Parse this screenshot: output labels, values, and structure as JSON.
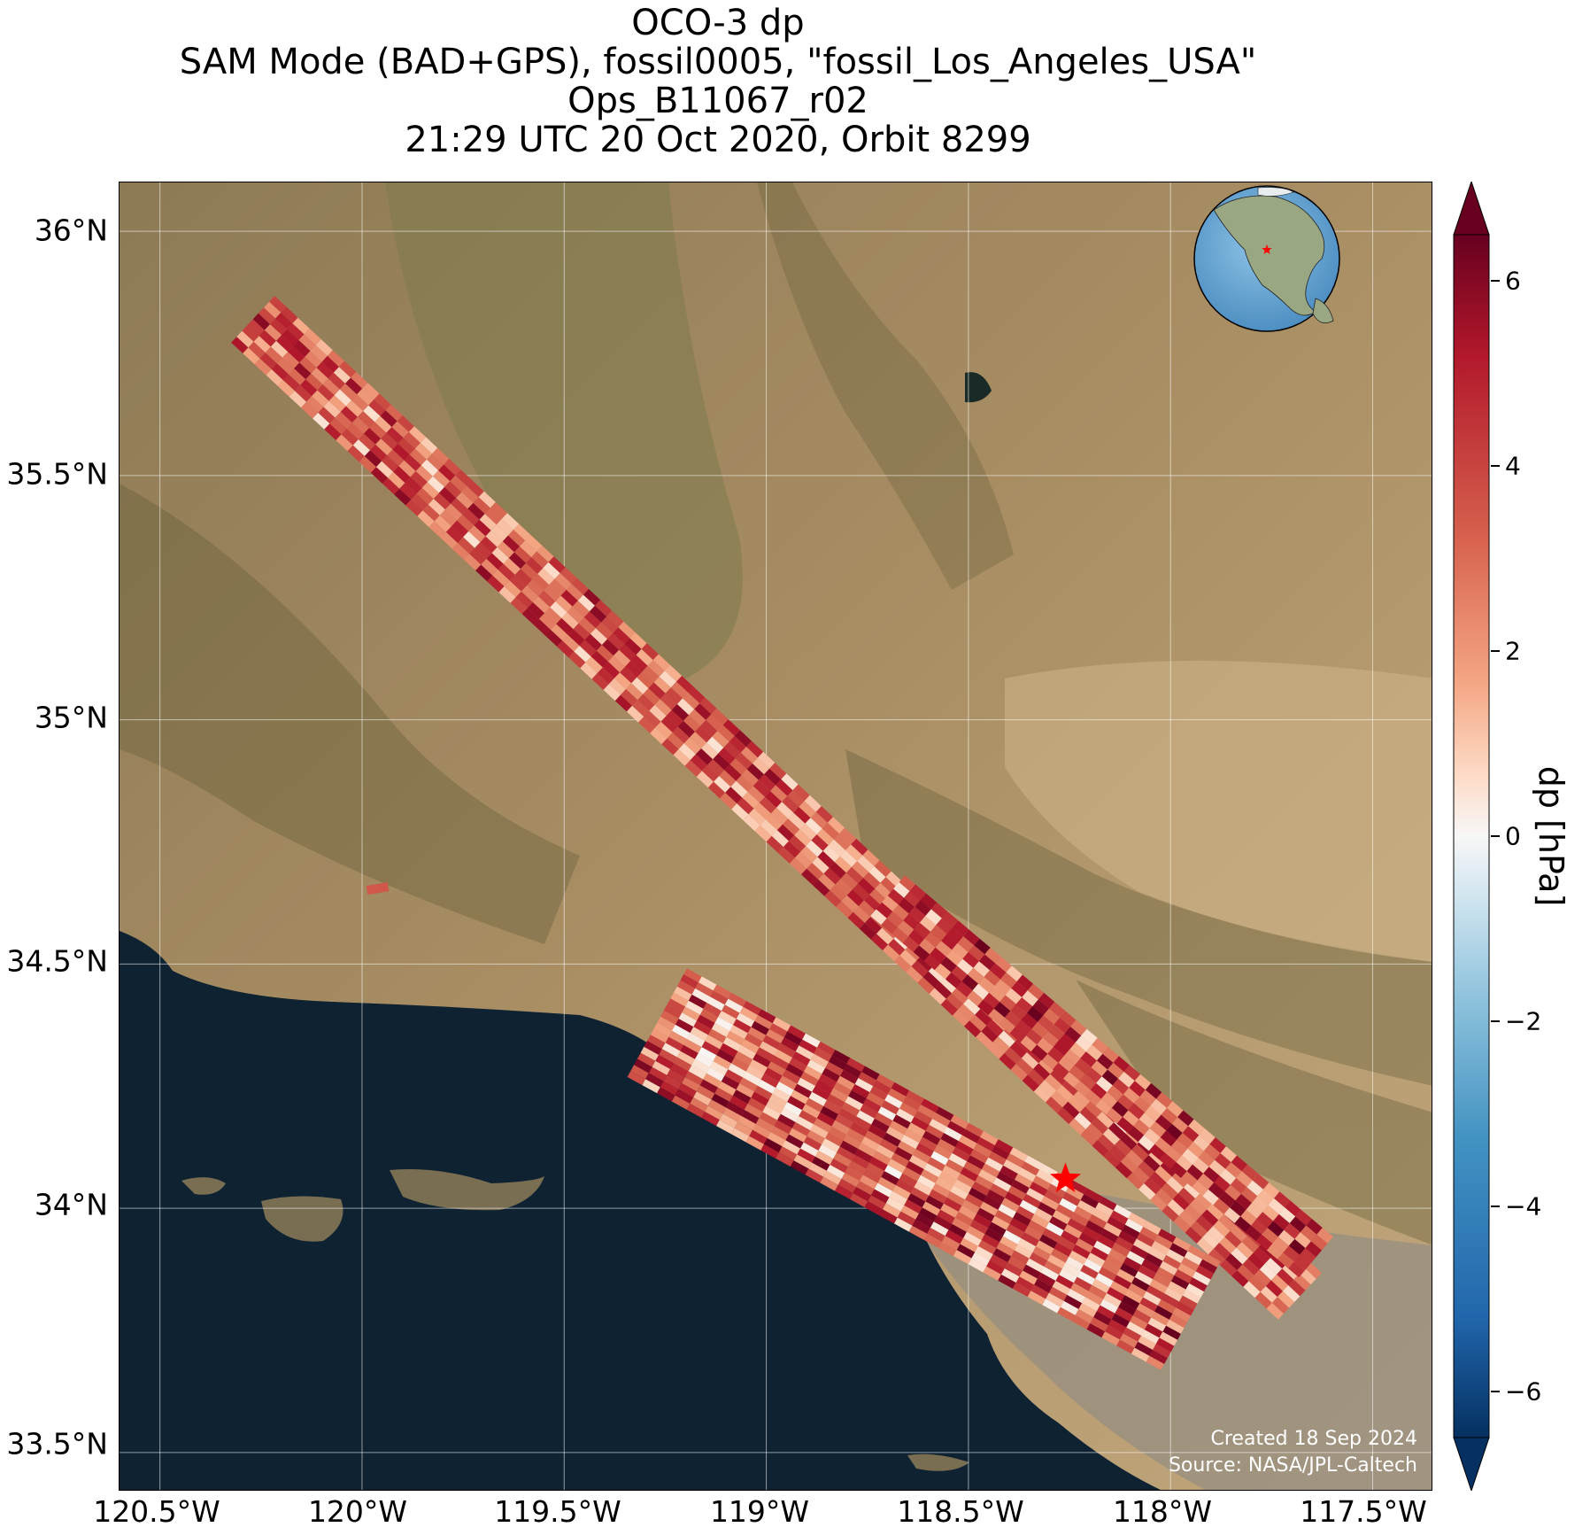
{
  "title": {
    "line1": "OCO-3 dp",
    "line2": "SAM Mode (BAD+GPS), fossil0005, \"fossil_Los_Angeles_USA\"",
    "line3": "Ops_B11067_r02",
    "line4": "21:29 UTC 20 Oct 2020, Orbit 8299"
  },
  "map": {
    "lat_ticks": [
      "36°N",
      "35.5°N",
      "35°N",
      "34.5°N",
      "34°N",
      "33.5°N"
    ],
    "lon_ticks": [
      "120.5°W",
      "120°W",
      "119.5°W",
      "119°W",
      "118.5°W",
      "118°W",
      "117.5°W"
    ],
    "lat_range": [
      33.42,
      36.1
    ],
    "lon_range": [
      -120.6,
      -117.35
    ],
    "target": {
      "name": "fossil_Los_Angeles_USA",
      "lat": 34.06,
      "lon": -118.26,
      "marker": "red-star"
    },
    "credit_line1": "Created 18 Sep 2024",
    "credit_line2": "Source: NASA/JPL-Caltech",
    "inset": "globe-with-target-star"
  },
  "colorbar": {
    "label": "dp [hPa]",
    "ticks": [
      "6",
      "4",
      "2",
      "0",
      "−2",
      "−4",
      "−6"
    ],
    "tick_values": [
      6,
      4,
      2,
      0,
      -2,
      -4,
      -6
    ],
    "range": [
      -6.5,
      6.5
    ],
    "colormap": "RdBu_r",
    "extend": "both"
  },
  "colors": {
    "ocean": "#0f2232",
    "land": "#a0885f",
    "max_red": "#67001f",
    "max_blue": "#053061",
    "target_star": "#ff0000"
  }
}
